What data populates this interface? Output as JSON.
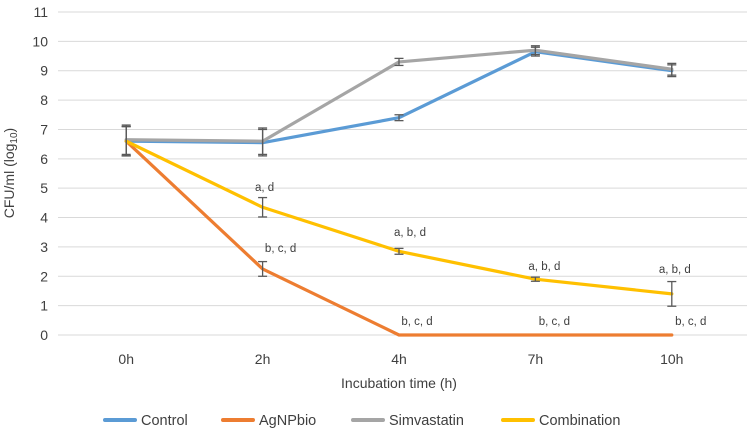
{
  "chart_data": {
    "type": "line",
    "title": "",
    "categories": [
      "0h",
      "2h",
      "4h",
      "7h",
      "10h"
    ],
    "xlabel": "Incubation time (h)",
    "ylabel": "CFU/ml (log10)",
    "ylabel_parts": [
      "CFU/ml (log",
      "10",
      ")"
    ],
    "ylim": [
      0,
      11
    ],
    "yticks": [
      0,
      1,
      2,
      3,
      4,
      5,
      6,
      7,
      8,
      9,
      10,
      11
    ],
    "grid": true,
    "legend_position": "bottom",
    "series": [
      {
        "name": "Control",
        "color": "#5B9BD5",
        "values": [
          6.6,
          6.55,
          7.4,
          9.65,
          9.0
        ],
        "error": [
          0.5,
          0.45,
          0.1,
          0.15,
          0.2
        ]
      },
      {
        "name": "AgNPbio",
        "color": "#ED7D31",
        "values": [
          6.6,
          2.25,
          0,
          0,
          0
        ],
        "error": [
          0.5,
          0.25,
          0,
          0,
          0
        ]
      },
      {
        "name": "Simvastatin",
        "color": "#A5A5A5",
        "values": [
          6.65,
          6.6,
          9.3,
          9.7,
          9.05
        ],
        "error": [
          0.5,
          0.45,
          0.12,
          0.15,
          0.2
        ]
      },
      {
        "name": "Combination",
        "color": "#FFC000",
        "values": [
          6.6,
          4.35,
          2.85,
          1.9,
          1.4
        ],
        "error": [
          0.5,
          0.33,
          0.1,
          0.07,
          0.42
        ]
      }
    ],
    "annotations": [
      {
        "text": "a, d",
        "x_index": 1,
        "dx": 2,
        "y": 5.0
      },
      {
        "text": "b, c, d",
        "x_index": 1,
        "dx": 18,
        "y": 2.93
      },
      {
        "text": "a, b, d",
        "x_index": 2,
        "dx": 11,
        "y": 3.47
      },
      {
        "text": "b, c, d",
        "x_index": 2,
        "dx": 18,
        "y": 0.44
      },
      {
        "text": "a, b, d",
        "x_index": 3,
        "dx": 9,
        "y": 2.32
      },
      {
        "text": "b, c, d",
        "x_index": 3,
        "dx": 19,
        "y": 0.44
      },
      {
        "text": "a, b, d",
        "x_index": 4,
        "dx": 3,
        "y": 2.21
      },
      {
        "text": "b, c, d",
        "x_index": 4,
        "dx": 19,
        "y": 0.44
      }
    ],
    "colors": {
      "grid": "#D9D9D9",
      "error_bar": "#595959",
      "text": "#3F3F3F"
    }
  }
}
